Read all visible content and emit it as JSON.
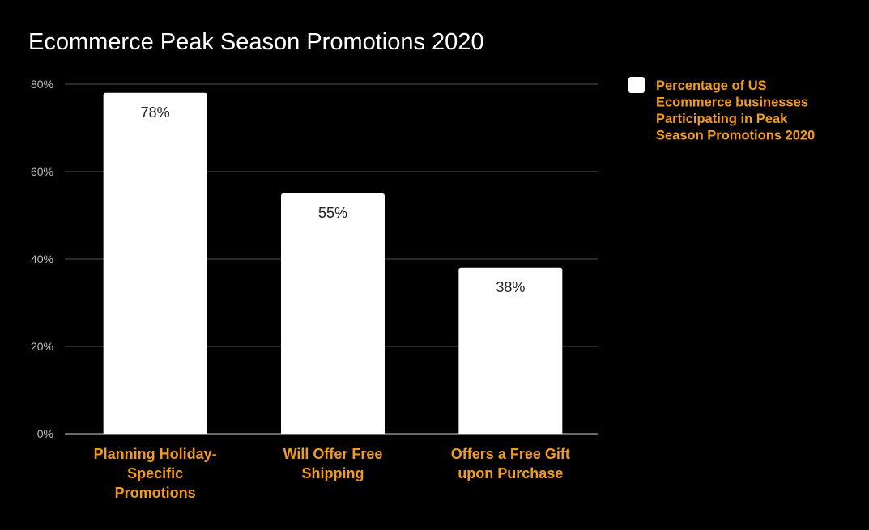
{
  "chart_data": {
    "type": "bar",
    "title": "Ecommerce Peak Season Promotions 2020",
    "categories": [
      [
        "Planning Holiday-",
        "Specific",
        "Promotions"
      ],
      [
        "Will Offer Free",
        "Shipping"
      ],
      [
        "Offers a Free Gift",
        "upon Purchase"
      ]
    ],
    "series": [
      {
        "name": [
          "Percentage of US",
          "Ecommerce businesses",
          "Participating in Peak",
          "Season Promotions 2020"
        ],
        "values": [
          78,
          55,
          38
        ],
        "data_labels": [
          "78%",
          "55%",
          "38%"
        ],
        "color": "#ffffff"
      }
    ],
    "yticks": [
      "0%",
      "20%",
      "40%",
      "60%",
      "80%"
    ],
    "ytick_values": [
      0,
      20,
      40,
      60,
      80
    ],
    "ylim": [
      0,
      80
    ],
    "grid": true,
    "legend": "right",
    "colors": {
      "background": "#000000",
      "label": "#f29c1f",
      "grid": "#555555",
      "bar": "#ffffff"
    }
  }
}
